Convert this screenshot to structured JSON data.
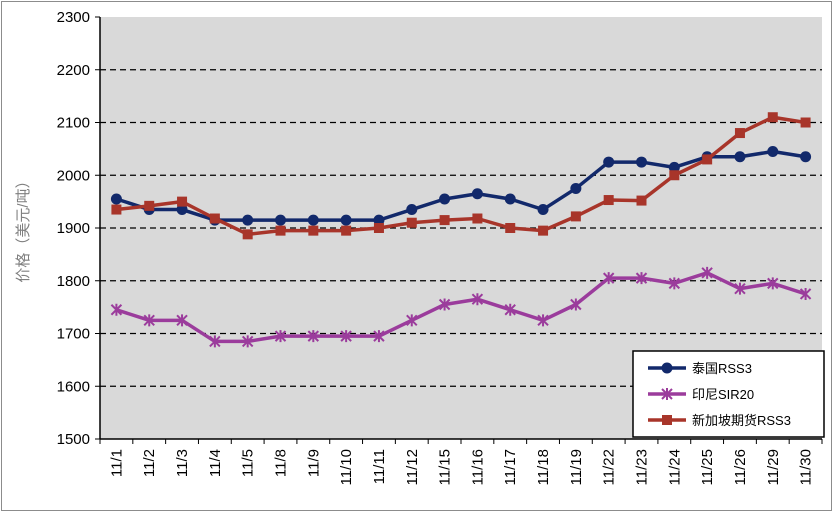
{
  "chart_data": {
    "type": "line",
    "title": "",
    "xlabel": "",
    "ylabel": "价格（美元/吨）",
    "ylim": [
      1500,
      2300
    ],
    "yticks": [
      1500,
      1600,
      1700,
      1800,
      1900,
      2000,
      2100,
      2200,
      2300
    ],
    "grid": "horizontal dashed",
    "legend": "bottom-right",
    "background": "#d9d9d9",
    "categories": [
      "11/1",
      "11/2",
      "11/3",
      "11/4",
      "11/5",
      "11/8",
      "11/9",
      "11/10",
      "11/11",
      "11/12",
      "11/15",
      "11/16",
      "11/17",
      "11/18",
      "11/19",
      "11/22",
      "11/23",
      "11/24",
      "11/25",
      "11/26",
      "11/29",
      "11/30"
    ],
    "series": [
      {
        "name": "泰国RSS3",
        "color": "#12296b",
        "marker": "circle",
        "values": [
          1955,
          1935,
          1935,
          1915,
          1915,
          1915,
          1915,
          1915,
          1915,
          1935,
          1955,
          1965,
          1955,
          1935,
          1975,
          2025,
          2025,
          2015,
          2035,
          2035,
          2045,
          2035
        ]
      },
      {
        "name": "印尼SIR20",
        "color": "#9b3c9c",
        "marker": "star",
        "values": [
          1745,
          1725,
          1725,
          1685,
          1685,
          1695,
          1695,
          1695,
          1695,
          1725,
          1755,
          1765,
          1745,
          1725,
          1755,
          1805,
          1805,
          1795,
          1815,
          1785,
          1795,
          1775
        ]
      },
      {
        "name": "新加坡期货RSS3",
        "color": "#a8352a",
        "marker": "square",
        "values": [
          1935,
          1942,
          1950,
          1918,
          1888,
          1895,
          1895,
          1895,
          1900,
          1910,
          1915,
          1918,
          1900,
          1895,
          1922,
          1953,
          1952,
          2000,
          2030,
          2080,
          2110,
          2100
        ]
      }
    ]
  }
}
